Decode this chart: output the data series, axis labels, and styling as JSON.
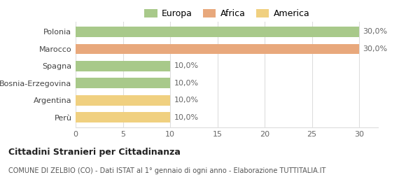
{
  "categories": [
    "Perù",
    "Argentina",
    "Bosnia-Erzegovina",
    "Spagna",
    "Marocco",
    "Polonia"
  ],
  "values": [
    10,
    10,
    10,
    10,
    30,
    30
  ],
  "colors": [
    "#f0d080",
    "#f0d080",
    "#a8c98a",
    "#a8c98a",
    "#e8a87c",
    "#a8c98a"
  ],
  "labels": [
    "10,0%",
    "10,0%",
    "10,0%",
    "10,0%",
    "30,0%",
    "30,0%"
  ],
  "legend": [
    {
      "label": "Europa",
      "color": "#a8c98a"
    },
    {
      "label": "Africa",
      "color": "#e8a87c"
    },
    {
      "label": "America",
      "color": "#f0d080"
    }
  ],
  "xlim": [
    0,
    32
  ],
  "xticks": [
    0,
    5,
    10,
    15,
    20,
    25,
    30
  ],
  "title_bold": "Cittadini Stranieri per Cittadinanza",
  "subtitle": "COMUNE DI ZELBIO (CO) - Dati ISTAT al 1° gennaio di ogni anno - Elaborazione TUTTITALIA.IT",
  "bg_color": "#ffffff",
  "bar_height": 0.6,
  "grid_color": "#dddddd"
}
